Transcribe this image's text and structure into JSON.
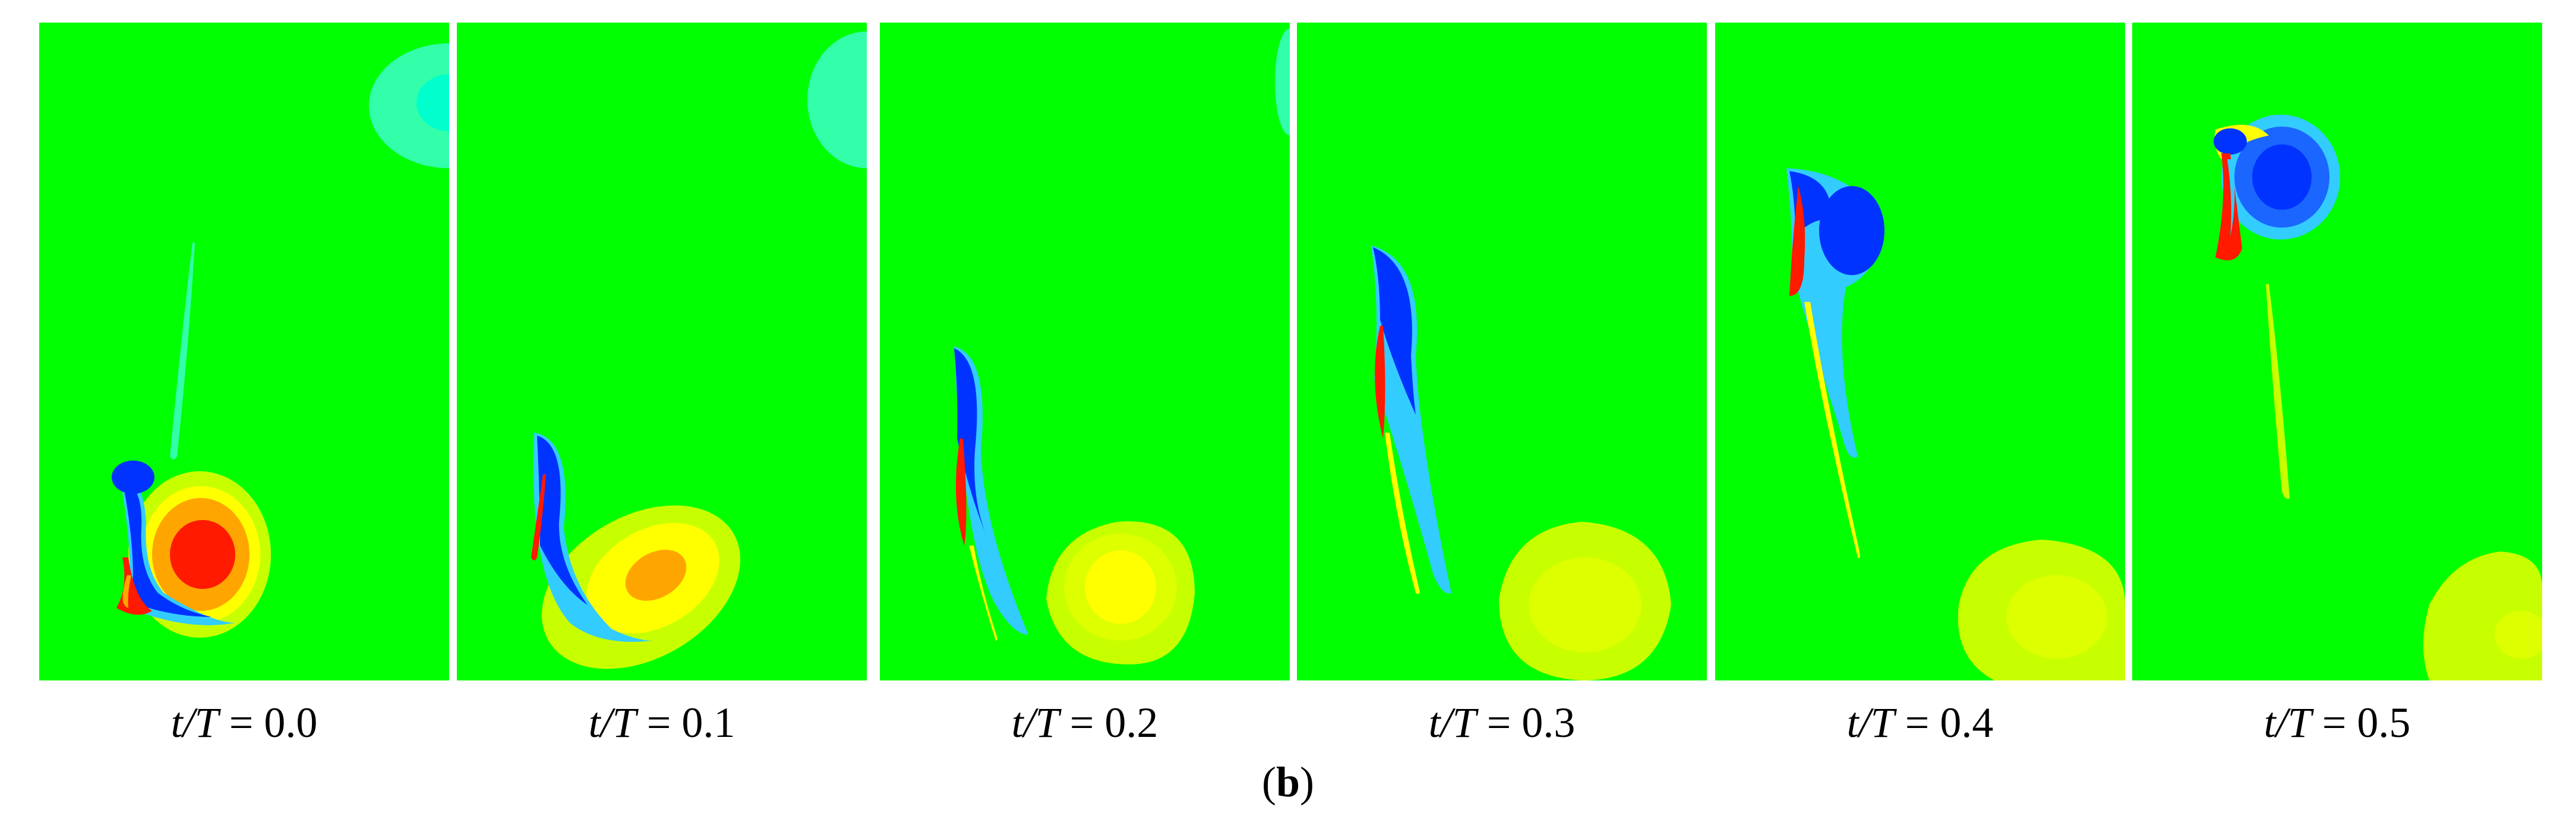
{
  "panels": [
    {
      "label_var": "t/T",
      "label_eq": "=",
      "label_value": "0.0"
    },
    {
      "label_var": "t/T",
      "label_eq": "=",
      "label_value": "0.1"
    },
    {
      "label_var": "t/T",
      "label_eq": "=",
      "label_value": "0.2"
    },
    {
      "label_var": "t/T",
      "label_eq": "=",
      "label_value": "0.3"
    },
    {
      "label_var": "t/T",
      "label_eq": "=",
      "label_value": "0.4"
    },
    {
      "label_var": "t/T",
      "label_eq": "=",
      "label_value": "0.5"
    }
  ],
  "sub_label": {
    "open": "(",
    "letter": "b",
    "close": ")"
  },
  "colors": {
    "background": "#00ff00",
    "red": "#ff1a00",
    "orange": "#ffa500",
    "yellow": "#ffff00",
    "yellow_green": "#c8ff00",
    "cyan": "#00ffcc",
    "light_blue": "#33ccff",
    "blue": "#0033ff"
  }
}
